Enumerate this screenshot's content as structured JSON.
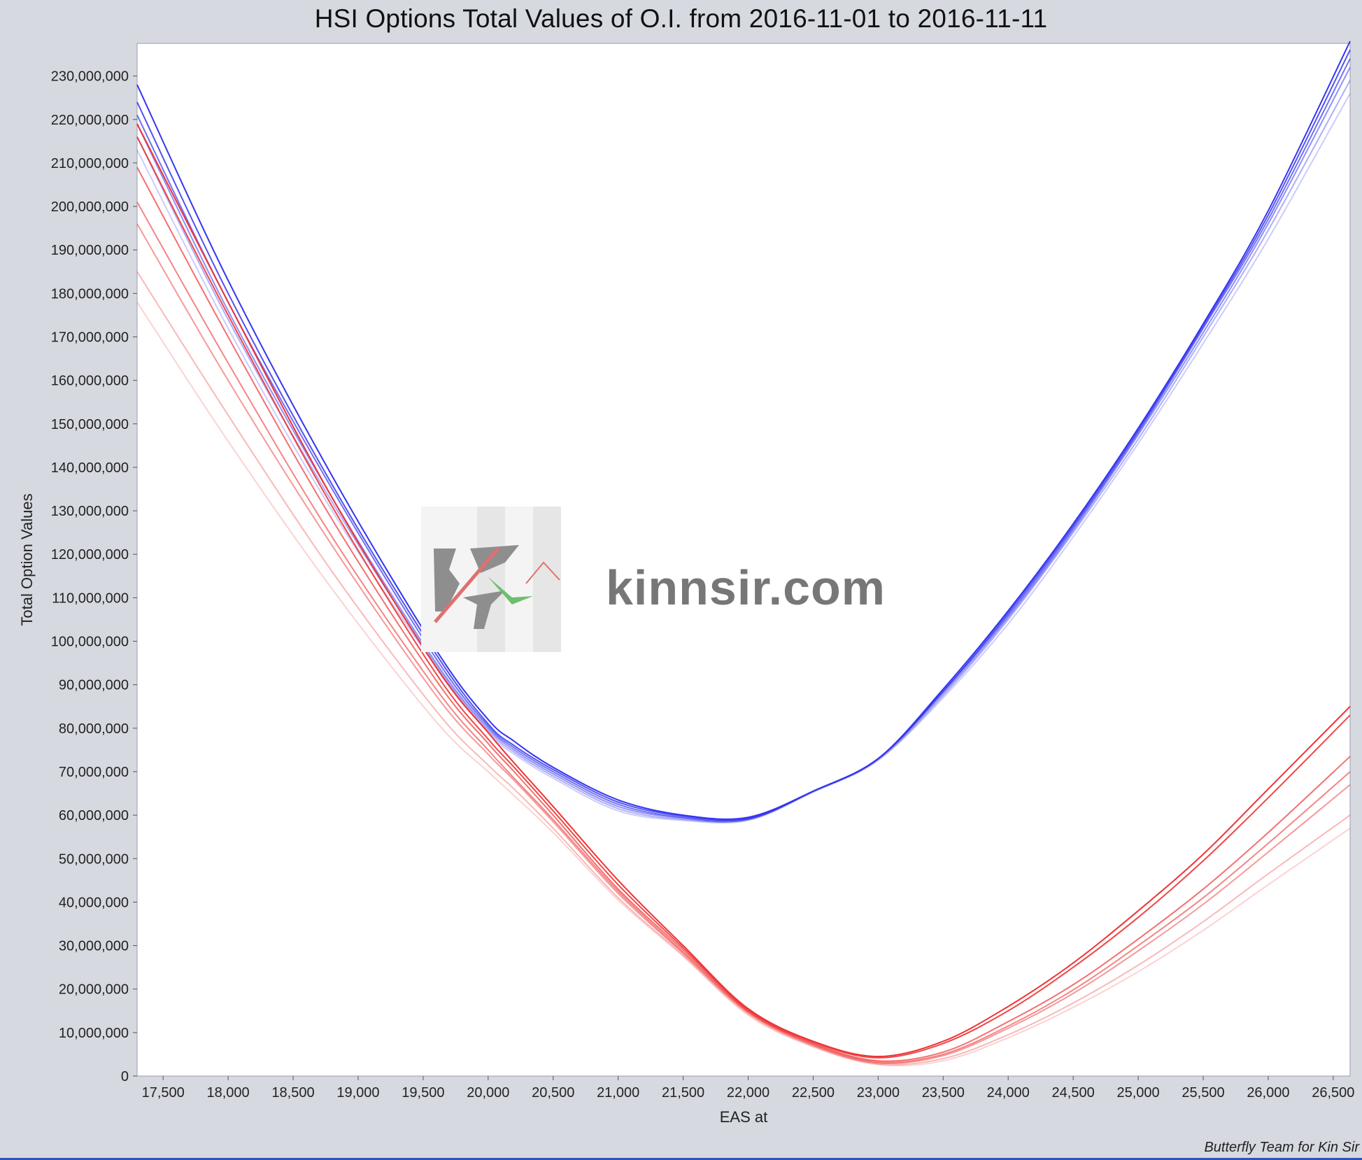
{
  "title": "HSI Options Total Values of O.I. from  2016-11-01 to 2016-11-11",
  "credit": "Butterfly Team for Kin Sir",
  "watermark": {
    "text": "kinnsir.com"
  },
  "colors": {
    "call_series": "#3434f0",
    "put_series": "#ee3333",
    "plot_bg": "#ffffff",
    "frame_bg": "#d6d9e0"
  },
  "chart_data": {
    "type": "line",
    "title": "HSI Options Total Values of O.I. from  2016-11-01 to 2016-11-11",
    "xlabel": "EAS at",
    "ylabel": "Total Option Values",
    "xlim": [
      17300,
      26630
    ],
    "ylim": [
      0,
      237500000
    ],
    "grid": false,
    "x_ticks": [
      17500,
      18000,
      18500,
      19000,
      19500,
      20000,
      20500,
      21000,
      21500,
      22000,
      22500,
      23000,
      23500,
      24000,
      24500,
      25000,
      25500,
      26000,
      26500
    ],
    "x_tick_labels": [
      "17,500",
      "18,000",
      "18,500",
      "19,000",
      "19,500",
      "20,000",
      "20,500",
      "21,000",
      "21,500",
      "22,000",
      "22,500",
      "23,000",
      "23,500",
      "24,000",
      "24,500",
      "25,000",
      "25,500",
      "26,000",
      "26,500"
    ],
    "y_ticks": [
      0,
      10000000,
      20000000,
      30000000,
      40000000,
      50000000,
      60000000,
      70000000,
      80000000,
      90000000,
      100000000,
      110000000,
      120000000,
      130000000,
      140000000,
      150000000,
      160000000,
      170000000,
      180000000,
      190000000,
      200000000,
      210000000,
      220000000,
      230000000
    ],
    "y_tick_labels": [
      "0",
      "10,000,000",
      "20,000,000",
      "30,000,000",
      "40,000,000",
      "50,000,000",
      "60,000,000",
      "70,000,000",
      "80,000,000",
      "90,000,000",
      "100,000,000",
      "110,000,000",
      "120,000,000",
      "130,000,000",
      "140,000,000",
      "150,000,000",
      "160,000,000",
      "170,000,000",
      "180,000,000",
      "190,000,000",
      "200,000,000",
      "210,000,000",
      "220,000,000",
      "230,000,000"
    ],
    "x": [
      17300,
      18000,
      18800,
      19600,
      20000,
      20200,
      20500,
      21000,
      21500,
      22000,
      22500,
      23000,
      23500,
      24000,
      24500,
      25000,
      25500,
      26000,
      26630
    ],
    "series": [
      {
        "color": "#3434f0",
        "opacity": 1.0,
        "values": [
          228000000,
          183000000,
          138000000,
          98000000,
          82000000,
          77000000,
          71000000,
          63500000,
          60000000,
          59500000,
          65500000,
          73000000,
          89000000,
          107000000,
          127000000,
          149000000,
          173000000,
          199000000,
          238000000
        ]
      },
      {
        "color": "#3434f0",
        "opacity": 0.85,
        "values": [
          224000000,
          180000000,
          136000000,
          97000000,
          81000000,
          76000000,
          70500000,
          63000000,
          59800000,
          59300000,
          65500000,
          73000000,
          88500000,
          106500000,
          126500000,
          148500000,
          172500000,
          198000000,
          236000000
        ]
      },
      {
        "color": "#3434f0",
        "opacity": 0.7,
        "values": [
          221000000,
          178000000,
          135000000,
          96000000,
          80500000,
          75500000,
          70000000,
          62500000,
          59500000,
          59200000,
          65500000,
          73000000,
          88500000,
          106000000,
          126000000,
          148000000,
          172000000,
          197000000,
          234000000
        ]
      },
      {
        "color": "#3434f0",
        "opacity": 0.55,
        "values": [
          219000000,
          176000000,
          133000000,
          95000000,
          80000000,
          75000000,
          69500000,
          62000000,
          59300000,
          59000000,
          65500000,
          73000000,
          88000000,
          105500000,
          125500000,
          147500000,
          171000000,
          196000000,
          232000000
        ]
      },
      {
        "color": "#3434f0",
        "opacity": 0.4,
        "values": [
          216000000,
          174000000,
          132000000,
          94500000,
          79500000,
          74500000,
          69000000,
          61500000,
          59000000,
          59000000,
          65400000,
          72800000,
          87500000,
          105000000,
          125000000,
          146500000,
          170000000,
          194500000,
          229000000
        ]
      },
      {
        "color": "#3434f0",
        "opacity": 0.25,
        "values": [
          213000000,
          172000000,
          130000000,
          94000000,
          79000000,
          74000000,
          68500000,
          61000000,
          58800000,
          58800000,
          65300000,
          72600000,
          87000000,
          104000000,
          124000000,
          145500000,
          168500000,
          192500000,
          226000000
        ]
      },
      {
        "color": "#ee3333",
        "opacity": 1.0,
        "values": [
          219000000,
          178000000,
          133000000,
          94000000,
          79000000,
          72000000,
          62000000,
          45000000,
          30000000,
          15500000,
          8000000,
          4500000,
          8000000,
          16000000,
          26000000,
          38000000,
          51000000,
          66000000,
          85000000
        ]
      },
      {
        "color": "#ee3333",
        "opacity": 0.9,
        "values": [
          216000000,
          175000000,
          131000000,
          92500000,
          77500000,
          71000000,
          61000000,
          44000000,
          29500000,
          15200000,
          7800000,
          4200000,
          7500000,
          15000000,
          25000000,
          36500000,
          49500000,
          64000000,
          83000000
        ]
      },
      {
        "color": "#ee3333",
        "opacity": 0.7,
        "values": [
          209000000,
          170000000,
          128000000,
          91000000,
          76500000,
          70000000,
          60000000,
          43000000,
          29000000,
          15000000,
          7500000,
          3500000,
          5500000,
          12500000,
          21000000,
          31500000,
          43000000,
          56000000,
          73500000
        ]
      },
      {
        "color": "#ee3333",
        "opacity": 0.6,
        "values": [
          201000000,
          164000000,
          124000000,
          89000000,
          75000000,
          68500000,
          59000000,
          42500000,
          28500000,
          14800000,
          7300000,
          3200000,
          5000000,
          11500000,
          19800000,
          30000000,
          41000000,
          53500000,
          70000000
        ]
      },
      {
        "color": "#ee3333",
        "opacity": 0.5,
        "values": [
          196000000,
          160000000,
          122000000,
          87500000,
          74000000,
          68000000,
          58500000,
          42000000,
          28200000,
          14600000,
          7100000,
          3000000,
          4700000,
          11000000,
          19000000,
          28800000,
          39500000,
          51500000,
          67000000
        ]
      },
      {
        "color": "#ee3333",
        "opacity": 0.35,
        "values": [
          185000000,
          152000000,
          116000000,
          84000000,
          71500000,
          66000000,
          57000000,
          41000000,
          27800000,
          14300000,
          6900000,
          2800000,
          4000000,
          9500000,
          16800000,
          25500000,
          35500000,
          46500000,
          60000000
        ]
      },
      {
        "color": "#ee3333",
        "opacity": 0.22,
        "values": [
          178000000,
          146000000,
          112000000,
          81500000,
          70000000,
          64500000,
          56000000,
          40500000,
          27500000,
          14000000,
          6700000,
          2600000,
          3500000,
          8800000,
          15800000,
          24000000,
          33500000,
          44000000,
          57000000
        ]
      }
    ]
  }
}
